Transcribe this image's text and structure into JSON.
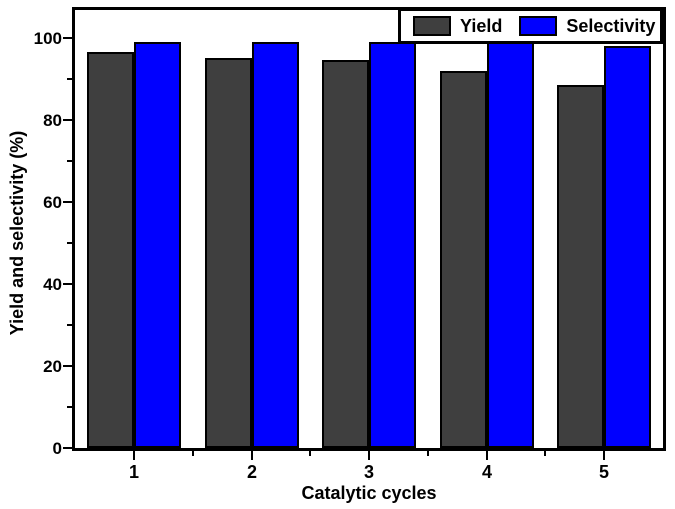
{
  "chart_data": {
    "type": "bar",
    "title": "",
    "xlabel": "Catalytic cycles",
    "ylabel": "Yield and selectivity (%)",
    "categories": [
      "1",
      "2",
      "3",
      "4",
      "5"
    ],
    "series": [
      {
        "name": "Yield",
        "color": "#3f3f3f",
        "values": [
          96.5,
          95,
          94.5,
          92,
          88.5
        ]
      },
      {
        "name": "Selectivity",
        "color": "#0000ff",
        "values": [
          99,
          99,
          99,
          99,
          98
        ]
      }
    ],
    "ylim": [
      0,
      106.8
    ],
    "yticks": [
      0,
      20,
      40,
      60,
      80,
      100
    ],
    "yticks_minor": [
      10,
      30,
      50,
      70,
      90
    ],
    "xticks_minor_between_categories": true,
    "legend_position": "top-right",
    "grid": false,
    "colors": {
      "axis": "#000000",
      "bar_border": "#000000",
      "background": "#ffffff"
    }
  }
}
